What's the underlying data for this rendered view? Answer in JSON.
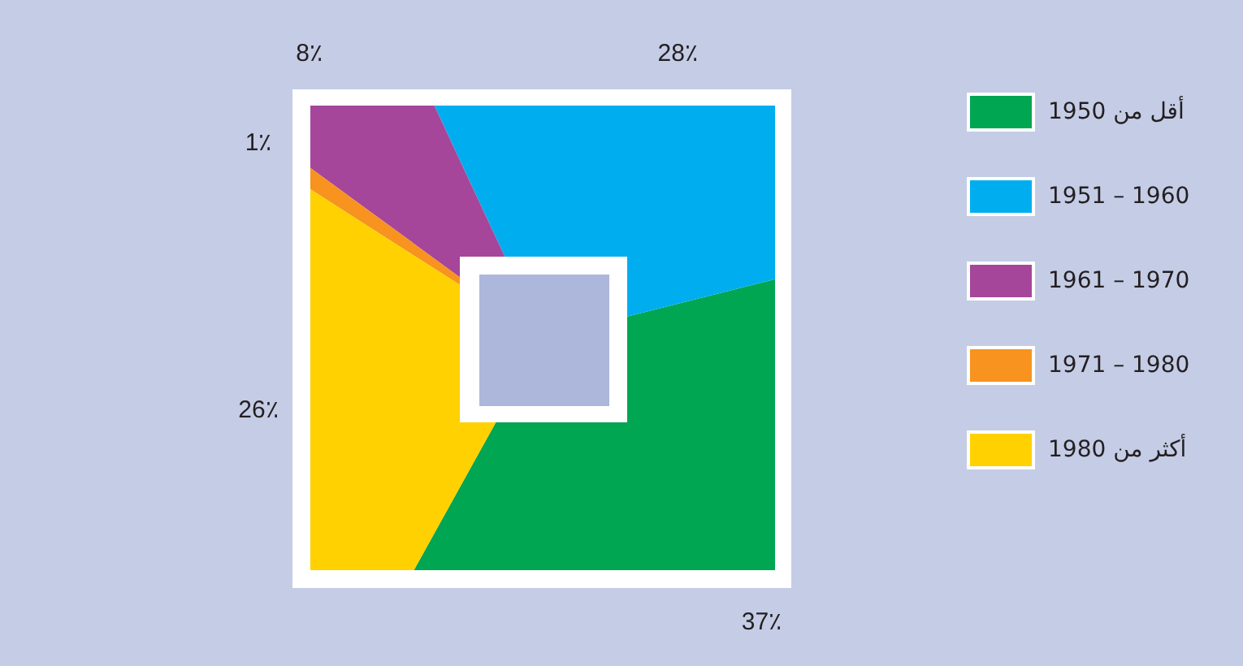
{
  "chart_data": {
    "type": "donut",
    "categories": [
      "أقل من 1950",
      "1951 – 1960",
      "1961 – 1970",
      "1971 – 1980",
      "أكثر من 1980"
    ],
    "values": [
      37,
      28,
      8,
      1,
      26
    ],
    "colors": [
      "#00a651",
      "#00aeef",
      "#a5469a",
      "#f7931e",
      "#ffd100"
    ],
    "value_labels": [
      "37٪",
      "28٪",
      "8٪",
      "1٪",
      "26٪"
    ],
    "legend": "right"
  }
}
